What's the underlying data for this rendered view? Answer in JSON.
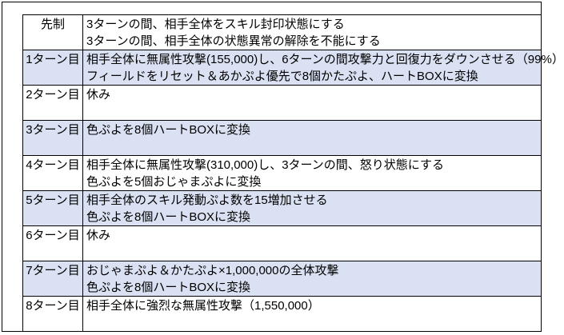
{
  "colors": {
    "shaded_row": "#d9e1f2",
    "border": "#000000",
    "background": "#ffffff",
    "text": "#000000"
  },
  "table": {
    "rows": [
      {
        "label": "先制",
        "shaded": false,
        "lines": [
          "3ターンの間、相手全体をスキル封印状態にする",
          "3ターンの間、相手全体の状態異常の解除を不能にする"
        ]
      },
      {
        "label": "1ターン目",
        "shaded": true,
        "lines": [
          "相手全体に無属性攻撃(155,000)し、6ターンの間攻撃力と回復力をダウンさせる（99%）",
          "フィールドをリセット＆あかぷよ優先で8個かたぷよ、ハートBOXに変換"
        ]
      },
      {
        "label": "2ターン目",
        "shaded": false,
        "lines": [
          "休み"
        ]
      },
      {
        "label": "3ターン目",
        "shaded": true,
        "lines": [
          "色ぷよを8個ハートBOXに変換"
        ]
      },
      {
        "label": "4ターン目",
        "shaded": false,
        "lines": [
          "相手全体に無属性攻撃(310,000)し、3ターンの間、怒り状態にする",
          "色ぷよを5個おじゃまぷよに変換"
        ]
      },
      {
        "label": "5ターン目",
        "shaded": true,
        "lines": [
          "相手全体のスキル発動ぷよ数を15増加させる",
          "色ぷよを8個ハートBOXに変換"
        ]
      },
      {
        "label": "6ターン目",
        "shaded": false,
        "lines": [
          "休み"
        ]
      },
      {
        "label": "7ターン目",
        "shaded": true,
        "lines": [
          "おじゃまぷよ＆かたぷよ×1,000,000の全体攻撃",
          "色ぷよを8個ハートBOXに変換"
        ]
      },
      {
        "label": "8ターン目",
        "shaded": false,
        "lines": [
          "相手全体に強烈な無属性攻撃（1,550,000）"
        ]
      }
    ]
  }
}
